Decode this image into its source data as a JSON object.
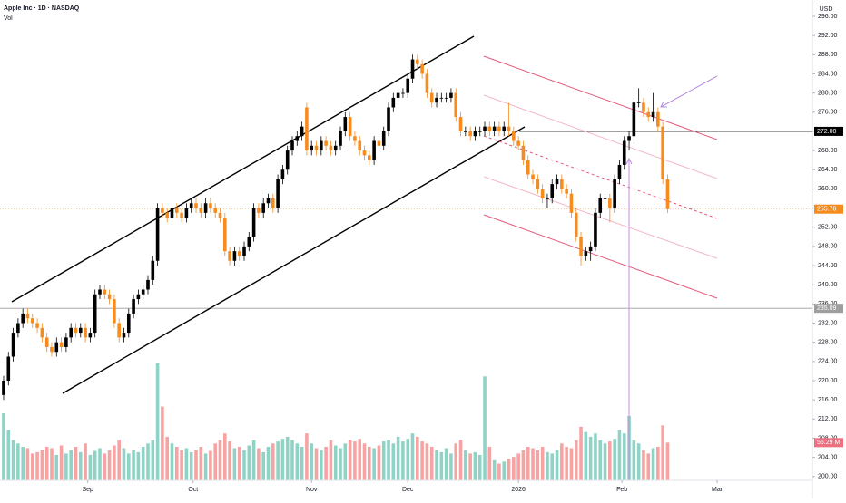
{
  "chart_data": {
    "type": "candlestick",
    "title": "Apple Inc · 1D · NASDAQ",
    "volume_title": "Vol",
    "currency": "USD",
    "up_color": "#000000",
    "down_color": "#f68c1f",
    "volume_up_color": "#8fd3c6",
    "volume_down_color": "#f5a3a3",
    "xlim": [
      -0.75,
      168.1
    ],
    "ylim": [
      199.2,
      299.4
    ],
    "xticks": [
      {
        "value": 17.5,
        "label": "Sep"
      },
      {
        "value": 39.4,
        "label": "Oct"
      },
      {
        "value": 64,
        "label": "Nov"
      },
      {
        "value": 84,
        "label": "Dec"
      },
      {
        "value": 107,
        "label": "2026"
      },
      {
        "value": 128.5,
        "label": "Feb"
      },
      {
        "value": 148.3,
        "label": "Mar"
      }
    ],
    "yticks": [
      {
        "value": 200,
        "label": "200.00"
      },
      {
        "value": 204,
        "label": "204.00"
      },
      {
        "value": 208,
        "label": "208.00"
      },
      {
        "value": 212,
        "label": "212.00"
      },
      {
        "value": 216,
        "label": "216.00"
      },
      {
        "value": 220,
        "label": "220.00"
      },
      {
        "value": 224,
        "label": "224.00"
      },
      {
        "value": 228,
        "label": "228.00"
      },
      {
        "value": 232,
        "label": "232.00"
      },
      {
        "value": 236,
        "label": "236.00"
      },
      {
        "value": 240,
        "label": "240.00"
      },
      {
        "value": 244,
        "label": "244.00"
      },
      {
        "value": 248,
        "label": "248.00"
      },
      {
        "value": 252,
        "label": "252.00"
      },
      {
        "value": 256,
        "label": "256.00"
      },
      {
        "value": 260,
        "label": "260.00"
      },
      {
        "value": 264,
        "label": "264.00"
      },
      {
        "value": 268,
        "label": "268.00"
      },
      {
        "value": 272,
        "label": "272.00"
      },
      {
        "value": 276,
        "label": "276.00"
      },
      {
        "value": 280,
        "label": "280.00"
      },
      {
        "value": 284,
        "label": "284.00"
      },
      {
        "value": 288,
        "label": "288.00"
      },
      {
        "value": 292,
        "label": "292.00"
      },
      {
        "value": 296,
        "label": "296.00"
      }
    ],
    "price_lines": [
      {
        "value": 272,
        "label": "272.00",
        "color": "#000000"
      },
      {
        "value": 235.09,
        "label": "235.09",
        "color": "#9e9e9e"
      },
      {
        "value": 255.78,
        "label": "255.78",
        "color": "#f68c1f"
      }
    ],
    "volume_label": {
      "value": 56.29,
      "label": "56.29 M"
    },
    "candles": [
      [
        217,
        221,
        216,
        220
      ],
      [
        220,
        226,
        219,
        225
      ],
      [
        225,
        231,
        224,
        230
      ],
      [
        230,
        233,
        229,
        232
      ],
      [
        232,
        235,
        231,
        234
      ],
      [
        234,
        235,
        232,
        233
      ],
      [
        233,
        234,
        231,
        232
      ],
      [
        232,
        233,
        230,
        231
      ],
      [
        231,
        232,
        228,
        229
      ],
      [
        229,
        230,
        226,
        227
      ],
      [
        227,
        228,
        225,
        226
      ],
      [
        226,
        229,
        225,
        228
      ],
      [
        228,
        229,
        226,
        227
      ],
      [
        227,
        230,
        226,
        229
      ],
      [
        229,
        232,
        228,
        231
      ],
      [
        231,
        232,
        229,
        230
      ],
      [
        230,
        232,
        229,
        231
      ],
      [
        231,
        232,
        228,
        229
      ],
      [
        229,
        231,
        228,
        230
      ],
      [
        230,
        239,
        229,
        238
      ],
      [
        238,
        240,
        237,
        239
      ],
      [
        239,
        240,
        237,
        238
      ],
      [
        238,
        239,
        236,
        237
      ],
      [
        237,
        238,
        231,
        232
      ],
      [
        232,
        233,
        228,
        229
      ],
      [
        229,
        231,
        228,
        230
      ],
      [
        230,
        235,
        229,
        234
      ],
      [
        234,
        238,
        233,
        237
      ],
      [
        237,
        239,
        236,
        238
      ],
      [
        238,
        240,
        237,
        239
      ],
      [
        239,
        242,
        238,
        241
      ],
      [
        241,
        246,
        240,
        245
      ],
      [
        245,
        257,
        244,
        256
      ],
      [
        256,
        257,
        254,
        255
      ],
      [
        255,
        256,
        253,
        254
      ],
      [
        254,
        257,
        253,
        256
      ],
      [
        256,
        257,
        254,
        255
      ],
      [
        255,
        256,
        253,
        254
      ],
      [
        254,
        257,
        253,
        256
      ],
      [
        256,
        258,
        255,
        257
      ],
      [
        257,
        258,
        255,
        256
      ],
      [
        256,
        257,
        254,
        255
      ],
      [
        255,
        258,
        254,
        257
      ],
      [
        257,
        258,
        255,
        256
      ],
      [
        256,
        257,
        254,
        255
      ],
      [
        255,
        256,
        253,
        254
      ],
      [
        254,
        255,
        246,
        247
      ],
      [
        247,
        248,
        244,
        245
      ],
      [
        245,
        248,
        244,
        247
      ],
      [
        247,
        248,
        245,
        246
      ],
      [
        246,
        249,
        245,
        248
      ],
      [
        248,
        251,
        247,
        250
      ],
      [
        250,
        257,
        249,
        256
      ],
      [
        256,
        257,
        254,
        255
      ],
      [
        255,
        258,
        254,
        257
      ],
      [
        257,
        259,
        256,
        258
      ],
      [
        258,
        259,
        255,
        256
      ],
      [
        256,
        263,
        255,
        262
      ],
      [
        262,
        265,
        261,
        264
      ],
      [
        264,
        269,
        263,
        268
      ],
      [
        268,
        271,
        267,
        270
      ],
      [
        270,
        272,
        269,
        271
      ],
      [
        271,
        274,
        270,
        273
      ],
      [
        277,
        278,
        267,
        268
      ],
      [
        268,
        270,
        267,
        269
      ],
      [
        269,
        270,
        267,
        268
      ],
      [
        268,
        271,
        267,
        270
      ],
      [
        270,
        271,
        268,
        269
      ],
      [
        269,
        270,
        267,
        268
      ],
      [
        268,
        270,
        267,
        269
      ],
      [
        269,
        273,
        268,
        272
      ],
      [
        272,
        276,
        271,
        275
      ],
      [
        275,
        276,
        270,
        271
      ],
      [
        271,
        272,
        269,
        270
      ],
      [
        270,
        271,
        267,
        268
      ],
      [
        268,
        269,
        266,
        267
      ],
      [
        267,
        268,
        265,
        266
      ],
      [
        266,
        271,
        265,
        270
      ],
      [
        270,
        271,
        268,
        269
      ],
      [
        269,
        273,
        268,
        272
      ],
      [
        272,
        278,
        271,
        277
      ],
      [
        277,
        280,
        276,
        279
      ],
      [
        279,
        281,
        278,
        280
      ],
      [
        280,
        281,
        279,
        280
      ],
      [
        280,
        284,
        279,
        283
      ],
      [
        283,
        288,
        282,
        287
      ],
      [
        287,
        288,
        285,
        286
      ],
      [
        286,
        287,
        283,
        284
      ],
      [
        284,
        285,
        279,
        280
      ],
      [
        280,
        281,
        277,
        278
      ],
      [
        278,
        280,
        277,
        279
      ],
      [
        279,
        280,
        278,
        279
      ],
      [
        279,
        280,
        278,
        279
      ],
      [
        279,
        281,
        278,
        280
      ],
      [
        280,
        281,
        274,
        275
      ],
      [
        275,
        276,
        271,
        272
      ],
      [
        272,
        273,
        271,
        272
      ],
      [
        272,
        273,
        270,
        271
      ],
      [
        271,
        273,
        270,
        272
      ],
      [
        272,
        273,
        271,
        272
      ],
      [
        272,
        274,
        271,
        273
      ],
      [
        273,
        274,
        271,
        272
      ],
      [
        272,
        274,
        271,
        273
      ],
      [
        273,
        274,
        271,
        272
      ],
      [
        272,
        274,
        271,
        273
      ],
      [
        273,
        278,
        271,
        272
      ],
      [
        272,
        273,
        269,
        270
      ],
      [
        270,
        271,
        268,
        269
      ],
      [
        269,
        270,
        265,
        266
      ],
      [
        266,
        267,
        262,
        263
      ],
      [
        263,
        264,
        261,
        262
      ],
      [
        262,
        263,
        259,
        260
      ],
      [
        260,
        261,
        257,
        258
      ],
      [
        258,
        259,
        256,
        258
      ],
      [
        258,
        262,
        257,
        261
      ],
      [
        261,
        263,
        260,
        262
      ],
      [
        262,
        263,
        259,
        260
      ],
      [
        260,
        261,
        258,
        259
      ],
      [
        259,
        260,
        254,
        255
      ],
      [
        255,
        256,
        249,
        250
      ],
      [
        250,
        251,
        244,
        246
      ],
      [
        246,
        248,
        245,
        247
      ],
      [
        247,
        249,
        245,
        248
      ],
      [
        248,
        256,
        247,
        255
      ],
      [
        255,
        259,
        254,
        258
      ],
      [
        258,
        259,
        256,
        258
      ],
      [
        258,
        259,
        253,
        256
      ],
      [
        256,
        263,
        255,
        262
      ],
      [
        262,
        266,
        261,
        265
      ],
      [
        265,
        271,
        264,
        270
      ],
      [
        270,
        272,
        268,
        271
      ],
      [
        271,
        279,
        270,
        278
      ],
      [
        278,
        281,
        277,
        278
      ],
      [
        278,
        279,
        275,
        276
      ],
      [
        276,
        277,
        274,
        275
      ],
      [
        275,
        280,
        274,
        276
      ],
      [
        276,
        277,
        272,
        273
      ],
      [
        273,
        274,
        261,
        262
      ],
      [
        262,
        263,
        255,
        255.78
      ]
    ],
    "volume": [
      100,
      75,
      60,
      55,
      50,
      48,
      40,
      42,
      45,
      50,
      48,
      38,
      52,
      40,
      45,
      50,
      42,
      55,
      38,
      44,
      48,
      40,
      45,
      52,
      60,
      48,
      40,
      45,
      42,
      50,
      55,
      60,
      175,
      110,
      65,
      55,
      50,
      45,
      48,
      42,
      45,
      50,
      40,
      44,
      55,
      60,
      70,
      58,
      48,
      50,
      45,
      52,
      60,
      48,
      42,
      50,
      55,
      58,
      62,
      65,
      60,
      55,
      50,
      70,
      55,
      48,
      45,
      50,
      60,
      52,
      48,
      55,
      60,
      58,
      62,
      55,
      50,
      48,
      52,
      58,
      60,
      55,
      65,
      58,
      62,
      70,
      65,
      58,
      55,
      50,
      45,
      42,
      48,
      40,
      55,
      60,
      45,
      40,
      42,
      38,
      155,
      50,
      30,
      25,
      28,
      32,
      35,
      40,
      45,
      50,
      48,
      45,
      50,
      42,
      40,
      45,
      55,
      50,
      48,
      60,
      80,
      72,
      65,
      70,
      60,
      55,
      58,
      62,
      75,
      70,
      96,
      60,
      55,
      45,
      40,
      48,
      50,
      82,
      56.29
    ]
  }
}
